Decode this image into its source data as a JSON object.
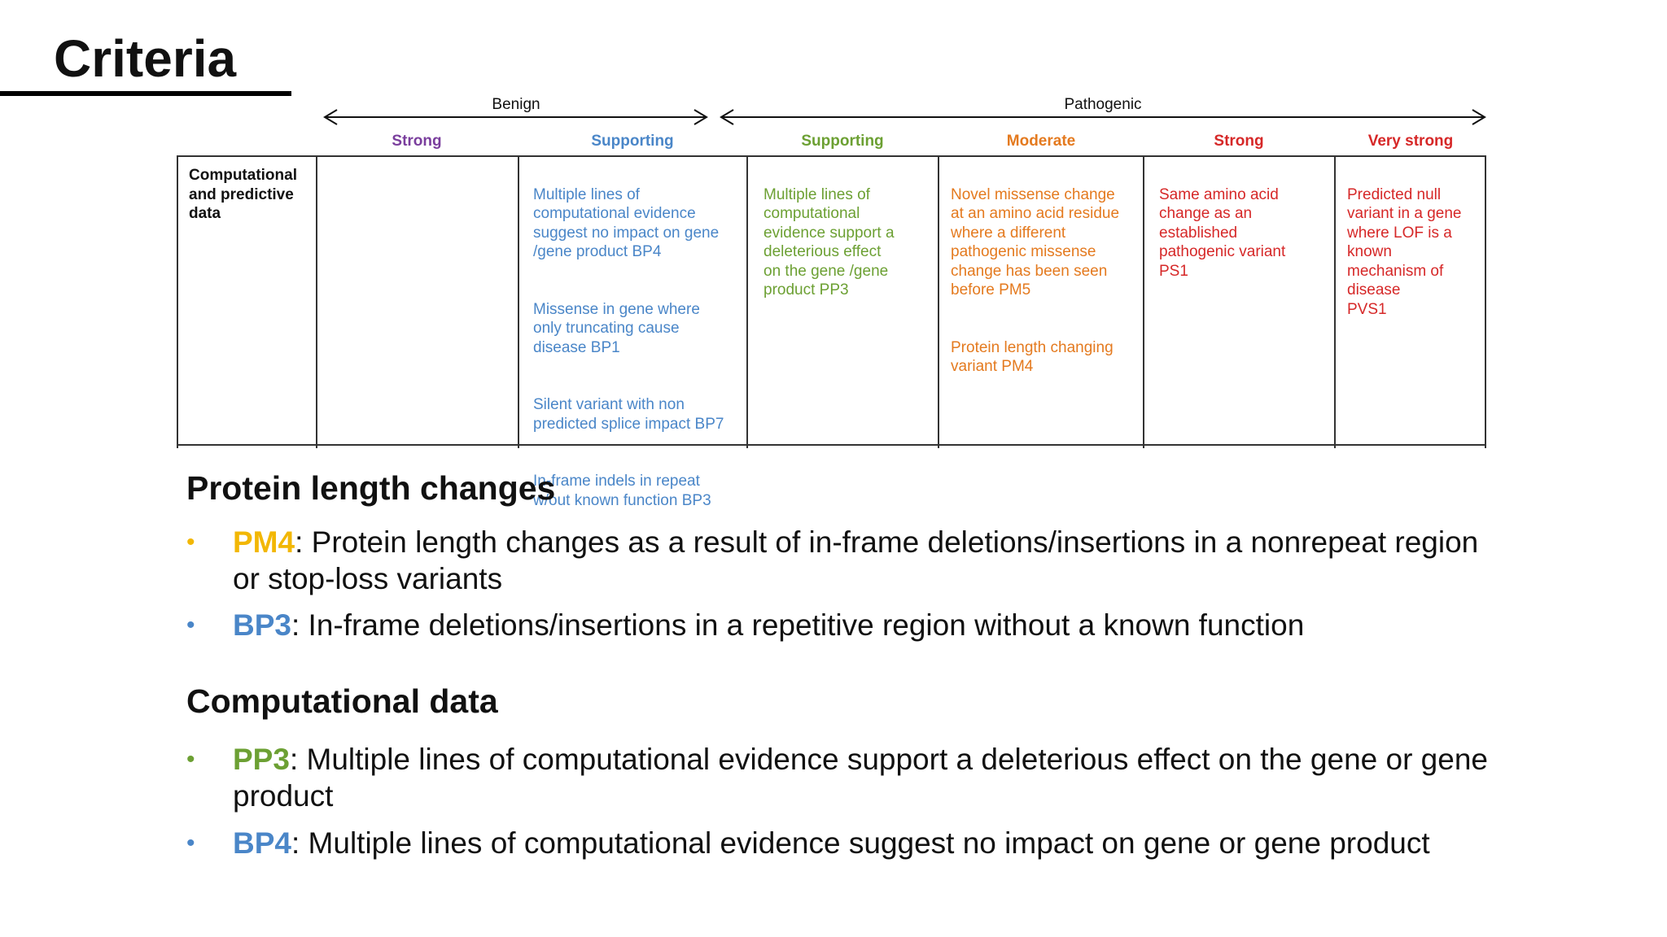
{
  "title": "Criteria",
  "colors": {
    "benign_strong": "#7a3e9d",
    "benign_supporting": "#4a86c8",
    "path_supporting": "#6ca033",
    "moderate": "#e47a1f",
    "strong": "#d62828",
    "very_strong": "#d62828",
    "pm4": "#f2b705"
  },
  "scale": {
    "benign_label": "Benign",
    "pathogenic_label": "Pathogenic"
  },
  "table": {
    "headers": [
      "Strong",
      "Supporting",
      "Supporting",
      "Moderate",
      "Strong",
      "Very strong"
    ],
    "row_label": "Computational\nand predictive\ndata",
    "cells": {
      "benign_strong": [],
      "benign_supporting": [
        "Multiple lines of\ncomputational evidence\nsuggest no impact on gene\n/gene product BP4",
        "Missense in gene where\nonly truncating cause\ndisease BP1",
        "Silent variant with non\npredicted splice impact BP7",
        "In-frame indels in repeat\nw/out known function BP3"
      ],
      "path_supporting": [
        "Multiple lines of\ncomputational\nevidence support a\ndeleterious effect\non the gene /gene\nproduct PP3"
      ],
      "moderate": [
        "Novel missense change\nat an amino acid residue\nwhere a different\npathogenic missense\nchange has been seen\nbefore PM5",
        "Protein length changing\nvariant PM4"
      ],
      "strong": [
        "Same amino acid\nchange as an\nestablished\npathogenic variant\nPS1"
      ],
      "very_strong": [
        "Predicted null\nvariant in a gene\nwhere LOF is a\nknown\nmechanism of\ndisease\nPVS1"
      ]
    }
  },
  "sections": [
    {
      "heading": "Protein length changes",
      "bullets": [
        {
          "code": "PM4",
          "text": ": Protein length changes as a result of in-frame deletions/insertions in a nonrepeat region or stop-loss variants"
        },
        {
          "code": "BP3",
          "text": ": In-frame deletions/insertions in a repetitive region without a known function"
        }
      ]
    },
    {
      "heading": "Computational data",
      "bullets": [
        {
          "code": "PP3",
          "text": ": Multiple lines of computational evidence support a deleterious effect on the gene or gene product"
        },
        {
          "code": "BP4",
          "text": ": Multiple lines of computational evidence suggest no impact on gene or gene product"
        }
      ]
    }
  ]
}
